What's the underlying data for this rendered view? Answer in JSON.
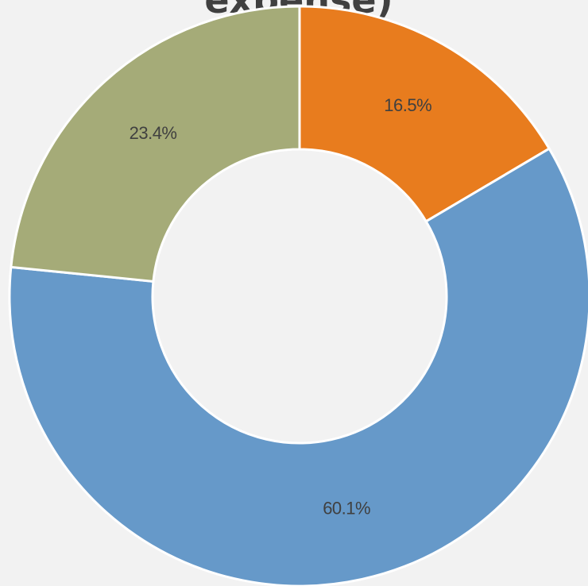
{
  "chart_data": {
    "type": "donut",
    "title": "expense)",
    "values": [
      16.5,
      60.1,
      23.4
    ],
    "value_labels": [
      "16.5%",
      "60.1%",
      "23.4%"
    ],
    "colors": [
      "#e87c1e",
      "#6699c9",
      "#a5ab78"
    ]
  }
}
